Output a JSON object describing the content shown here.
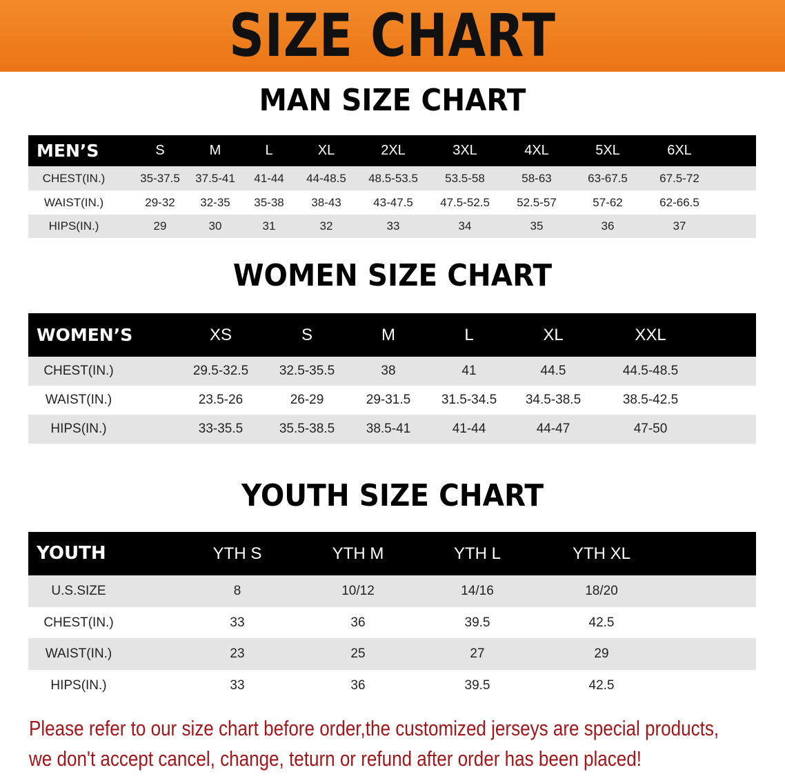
{
  "banner": {
    "title": "SIZE CHART",
    "color": "#ee7d1c"
  },
  "men": {
    "title": "MAN SIZE CHART",
    "header": "MEN’S",
    "sizes": [
      "S",
      "M",
      "L",
      "XL",
      "2XL",
      "3XL",
      "4XL",
      "5XL",
      "6XL"
    ],
    "rows": [
      {
        "label": "CHEST(IN.)",
        "values": [
          "35-37.5",
          "37.5-41",
          "41-44",
          "44-48.5",
          "48.5-53.5",
          "53.5-58",
          "58-63",
          "63-67.5",
          "67.5-72"
        ]
      },
      {
        "label": "WAIST(IN.)",
        "values": [
          "29-32",
          "32-35",
          "35-38",
          "38-43",
          "43-47.5",
          "47.5-52.5",
          "52.5-57",
          "57-62",
          "62-66.5"
        ]
      },
      {
        "label": "HIPS(IN.)",
        "values": [
          "29",
          "30",
          "31",
          "32",
          "33",
          "34",
          "35",
          "36",
          "37"
        ]
      }
    ]
  },
  "women": {
    "title": "WOMEN SIZE CHART",
    "header": "WOMEN’S",
    "sizes": [
      "XS",
      "S",
      "M",
      "L",
      "XL",
      "XXL"
    ],
    "rows": [
      {
        "label": "CHEST(IN.)",
        "values": [
          "29.5-32.5",
          "32.5-35.5",
          "38",
          "41",
          "44.5",
          "44.5-48.5"
        ]
      },
      {
        "label": "WAIST(IN.)",
        "values": [
          "23.5-26",
          "26-29",
          "29-31.5",
          "31.5-34.5",
          "34.5-38.5",
          "38.5-42.5"
        ]
      },
      {
        "label": "HIPS(IN.)",
        "values": [
          "33-35.5",
          "35.5-38.5",
          "38.5-41",
          "41-44",
          "44-47",
          "47-50"
        ]
      }
    ]
  },
  "youth": {
    "title": "YOUTH SIZE CHART",
    "header": "YOUTH",
    "sizes": [
      "YTH S",
      "YTH M",
      "YTH L",
      "YTH XL"
    ],
    "rows": [
      {
        "label": "U.S.SIZE",
        "values": [
          "8",
          "10/12",
          "14/16",
          "18/20"
        ]
      },
      {
        "label": "CHEST(IN.)",
        "values": [
          "33",
          "36",
          "39.5",
          "42.5"
        ]
      },
      {
        "label": "WAIST(IN.)",
        "values": [
          "23",
          "25",
          "27",
          "29"
        ]
      },
      {
        "label": "HIPS(IN.)",
        "values": [
          "33",
          "36",
          "39.5",
          "42.5"
        ]
      }
    ]
  },
  "notice": {
    "line1": "Please refer to our size chart before order,the customized jerseys are special products,",
    "line2": "we don't accept cancel, change, teturn or refund after order has been placed!",
    "color": "#a3161a"
  }
}
